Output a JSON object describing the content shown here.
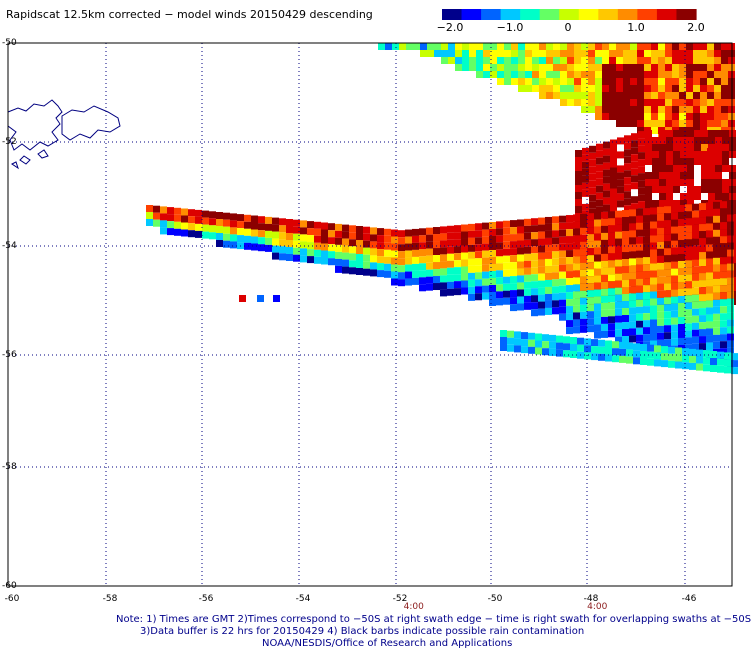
{
  "title": "Rapidscat 12.5km corrected − model winds 20150429 descending",
  "colorbar": {
    "ticks": [
      "−2.0",
      "−1.0",
      "0",
      "1.0",
      "2.0"
    ],
    "colors": [
      "#00008b",
      "#0000ff",
      "#0064ff",
      "#00c8ff",
      "#00ffc8",
      "#64ff64",
      "#c8ff00",
      "#ffff00",
      "#ffc800",
      "#ff8c00",
      "#ff4000",
      "#dc0000",
      "#8b0000"
    ]
  },
  "map": {
    "lat_labels": [
      "-50",
      "-52",
      "-54",
      "-56",
      "-58",
      "-60"
    ],
    "lon_labels": [
      "-60",
      "-58",
      "-56",
      "-54",
      "-52",
      "-50",
      "-48",
      "-46"
    ],
    "time_labels": [
      {
        "lon": -51.6,
        "text": "4:00"
      },
      {
        "lon": -47.8,
        "text": "4:00"
      }
    ],
    "grid_color": "#000080",
    "coast_color": "#000080"
  },
  "notes": [
    "Note: 1) Times are GMT 2)Times correspond to −50S at right swath edge − time is right swath for overlapping swaths at −50S",
    "3)Data buffer is 22 hrs for 20150429 4) Black barbs indicate possible rain contamination",
    "NOAA/NESDIS/Office of Research and Applications"
  ]
}
